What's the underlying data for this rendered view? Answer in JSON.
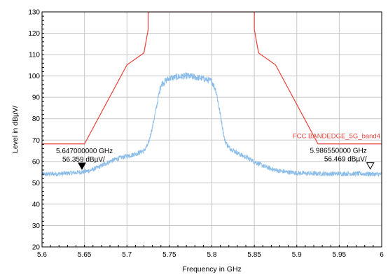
{
  "chart_data": {
    "type": "line",
    "title": "",
    "xlabel": "Frequency in GHz",
    "ylabel": "Level in dBµV/",
    "xlim": [
      5.6,
      6.0
    ],
    "ylim": [
      20,
      130
    ],
    "x_ticks": [
      5.6,
      5.65,
      5.7,
      5.75,
      5.8,
      5.85,
      5.9,
      5.95,
      6.0
    ],
    "x_tick_labels": [
      "5.6",
      "5.65",
      "5.7",
      "5.75",
      "5.8",
      "5.85",
      "5.9",
      "5.95",
      "6"
    ],
    "y_ticks": [
      20,
      30,
      40,
      50,
      60,
      70,
      80,
      90,
      100,
      110,
      120,
      130
    ],
    "y_tick_labels": [
      "20",
      "30",
      "40",
      "50",
      "60",
      "70",
      "80",
      "90",
      "100",
      "110",
      "120",
      "130"
    ],
    "grid": true,
    "series": [
      {
        "name": "FCC BANDEDGE_5G_band4",
        "color": "#e8413a",
        "kind": "limit",
        "x": [
          5.6,
          5.65,
          5.7,
          5.72,
          5.725,
          5.725,
          5.85,
          5.85,
          5.855,
          5.875,
          5.925,
          6.0
        ],
        "y": [
          68.2,
          68.2,
          105.2,
          110.8,
          121.8,
          130,
          130,
          121.8,
          110.8,
          105.2,
          68.2,
          68.2
        ]
      },
      {
        "color": "#8cbde8",
        "kind": "trace",
        "x": [
          5.6,
          5.62,
          5.64,
          5.65,
          5.66,
          5.67,
          5.68,
          5.69,
          5.7,
          5.71,
          5.72,
          5.725,
          5.73,
          5.735,
          5.74,
          5.75,
          5.76,
          5.77,
          5.78,
          5.79,
          5.8,
          5.805,
          5.81,
          5.815,
          5.82,
          5.83,
          5.84,
          5.85,
          5.86,
          5.87,
          5.88,
          5.89,
          5.9,
          5.92,
          5.94,
          5.96,
          5.98,
          6.0
        ],
        "y": [
          54.0,
          54.2,
          54.8,
          55.2,
          56.2,
          58.0,
          60.0,
          61.5,
          62.5,
          63.5,
          65.0,
          68.0,
          76.0,
          86.0,
          96.0,
          99.0,
          99.6,
          100.0,
          99.5,
          98.8,
          97.5,
          93.0,
          82.0,
          70.0,
          66.5,
          64.0,
          62.0,
          60.0,
          58.0,
          56.5,
          55.5,
          55.0,
          54.6,
          54.3,
          54.2,
          54.3,
          54.2,
          54.0
        ]
      }
    ],
    "markers": [
      {
        "freq_label": "5.647000000 GHz",
        "level_label": "56.359 dBµV/",
        "x": 5.647,
        "y": 56.359,
        "filled": true
      },
      {
        "freq_label": "5.986550000 GHz",
        "level_label": "56.469 dBµV/",
        "x": 5.98655,
        "y": 56.469,
        "filled": false
      }
    ],
    "limit_label": "FCC BANDEDGE_5G_band4",
    "limit_label_position": "right, near 70 dBµV/"
  }
}
